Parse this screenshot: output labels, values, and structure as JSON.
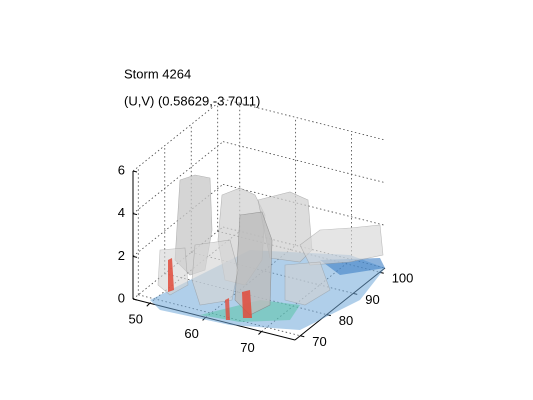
{
  "chart_data": {
    "type": "volume3d",
    "title": "Storm 4264",
    "subtitle": "(U,V) (0.58629,-3.7011)",
    "xlim": [
      47,
      76
    ],
    "xticks": [
      50,
      60,
      70
    ],
    "ylim": [
      68,
      102
    ],
    "yticks": [
      70,
      80,
      90,
      100
    ],
    "zlim": [
      0,
      6
    ],
    "zticks": [
      0,
      2,
      4,
      6
    ],
    "grid": true
  }
}
